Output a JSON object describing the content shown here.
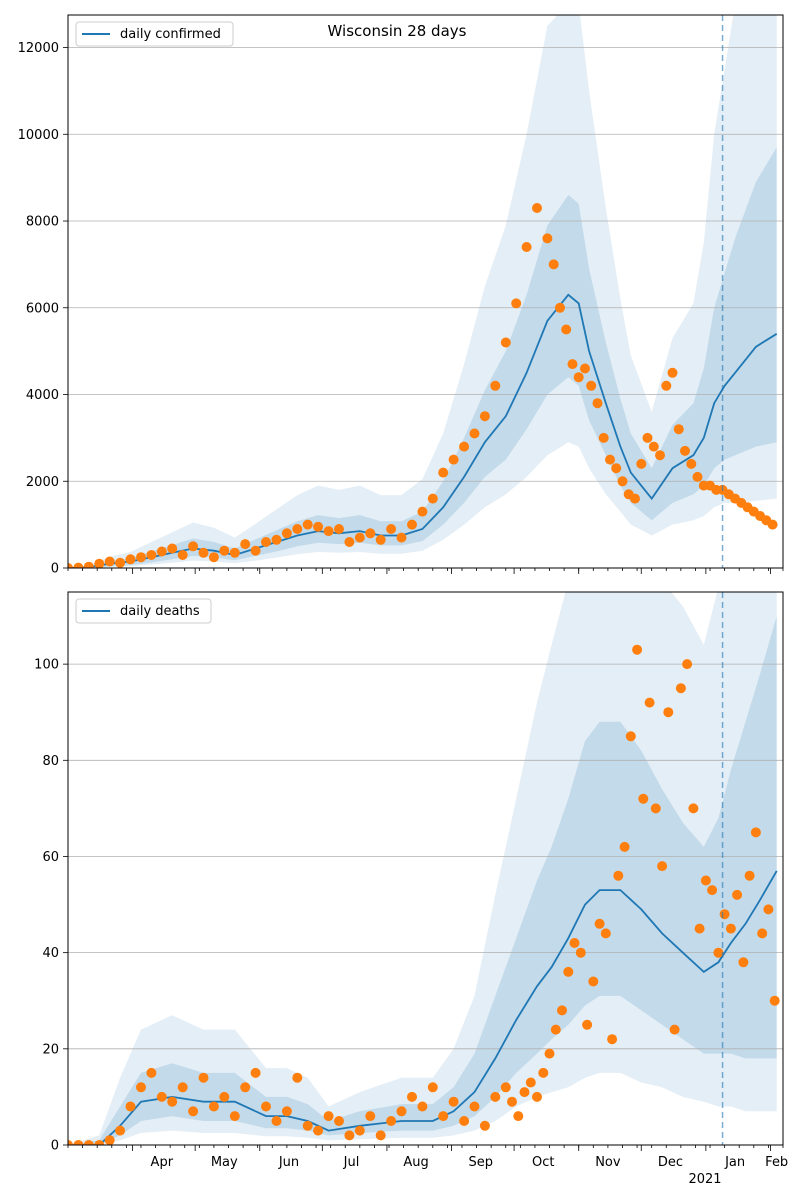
{
  "colors": {
    "band": "#1f77b4",
    "line": "#1f77b4",
    "dots": "#ff7f0e",
    "grid": "#b0b0b0",
    "vline": "#1f77b4"
  },
  "x_axis": {
    "tick_labels": [
      "Apr",
      "May",
      "Jun",
      "Jul",
      "Aug",
      "Sep",
      "Oct",
      "Nov",
      "Dec",
      "Jan",
      "Feb"
    ],
    "year_label": "2021"
  },
  "chart_data": [
    {
      "type": "line",
      "title": "Wisconsin 28 days",
      "legend_position": "top-left",
      "grid": "horizontal",
      "xlim": [
        "2020-03-01",
        "2021-02-07"
      ],
      "ylim": [
        0,
        12750
      ],
      "yticks": [
        "0",
        "2000",
        "4000",
        "6000",
        "8000",
        "10000",
        "12000"
      ],
      "vline_x": "2021-01-09",
      "series": [
        {
          "name": "daily confirmed"
        }
      ],
      "line_day": [
        0,
        10,
        20,
        30,
        40,
        50,
        60,
        70,
        80,
        90,
        100,
        110,
        120,
        130,
        140,
        150,
        160,
        170,
        180,
        190,
        200,
        210,
        220,
        230,
        240,
        245,
        250,
        258,
        265,
        270,
        280,
        290,
        300,
        305,
        310,
        315,
        320,
        330,
        340
      ],
      "line_y": [
        0,
        20,
        100,
        150,
        250,
        350,
        450,
        400,
        300,
        450,
        600,
        750,
        850,
        800,
        850,
        750,
        750,
        900,
        1400,
        2100,
        2900,
        3500,
        4500,
        5700,
        6300,
        6100,
        5000,
        3800,
        2800,
        2200,
        1600,
        2300,
        2600,
        3000,
        3800,
        4200,
        4500,
        5100,
        5400
      ],
      "band_inner_lo": [
        0,
        10,
        40,
        70,
        130,
        200,
        280,
        250,
        180,
        280,
        380,
        500,
        580,
        550,
        580,
        520,
        520,
        620,
        1000,
        1500,
        2100,
        2500,
        3200,
        4000,
        4400,
        4200,
        3400,
        2600,
        1900,
        1500,
        1100,
        1500,
        1700,
        1900,
        2300,
        2500,
        2600,
        2800,
        2900
      ],
      "band_inner_hi": [
        0,
        30,
        160,
        230,
        380,
        530,
        680,
        600,
        450,
        660,
        870,
        1080,
        1220,
        1150,
        1220,
        1080,
        1080,
        1300,
        2000,
        3000,
        4100,
        5000,
        6300,
        7900,
        8600,
        8400,
        6900,
        5200,
        3900,
        3100,
        2300,
        3300,
        3800,
        4600,
        6000,
        6800,
        7600,
        8900,
        9700
      ],
      "band_outer_lo": [
        0,
        5,
        20,
        40,
        80,
        120,
        170,
        150,
        110,
        170,
        240,
        320,
        370,
        350,
        370,
        330,
        330,
        400,
        650,
        1000,
        1400,
        1700,
        2100,
        2600,
        2900,
        2800,
        2300,
        1700,
        1300,
        1000,
        750,
        1000,
        1100,
        1200,
        1400,
        1500,
        1500,
        1550,
        1600
      ],
      "band_outer_hi": [
        0,
        50,
        260,
        370,
        600,
        820,
        1050,
        930,
        700,
        1020,
        1350,
        1680,
        1900,
        1800,
        1900,
        1680,
        1680,
        2050,
        3100,
        4700,
        6500,
        7900,
        10000,
        12500,
        14000,
        13600,
        11000,
        8300,
        6200,
        4900,
        3600,
        5300,
        6100,
        7500,
        10000,
        11500,
        13000,
        15000,
        16500
      ],
      "points": {
        "day": [
          0,
          5,
          10,
          15,
          20,
          25,
          30,
          35,
          40,
          45,
          50,
          55,
          60,
          65,
          70,
          75,
          80,
          85,
          90,
          95,
          100,
          105,
          110,
          115,
          120,
          125,
          130,
          135,
          140,
          145,
          150,
          155,
          160,
          165,
          170,
          175,
          180,
          185,
          190,
          195,
          200,
          205,
          210,
          215,
          220,
          225,
          230,
          233,
          236,
          239,
          242,
          245,
          248,
          251,
          254,
          257,
          260,
          263,
          266,
          269,
          272,
          275,
          278,
          281,
          284,
          287,
          290,
          293,
          296,
          299,
          302,
          305,
          308,
          311,
          314,
          317,
          320,
          323,
          326,
          329,
          332,
          335,
          338
        ],
        "value": [
          0,
          10,
          30,
          100,
          150,
          120,
          200,
          250,
          300,
          380,
          450,
          300,
          500,
          350,
          250,
          400,
          350,
          550,
          400,
          600,
          650,
          800,
          900,
          1000,
          950,
          850,
          900,
          600,
          700,
          800,
          650,
          900,
          700,
          1000,
          1300,
          1600,
          2200,
          2500,
          2800,
          3100,
          3500,
          4200,
          5200,
          6100,
          7400,
          8300,
          7600,
          7000,
          6000,
          5500,
          4700,
          4400,
          4600,
          4200,
          3800,
          3000,
          2500,
          2300,
          2000,
          1700,
          1600,
          2400,
          3000,
          2800,
          2600,
          4200,
          4500,
          3200,
          2700,
          2400,
          2100,
          1900,
          1900,
          1800,
          1800,
          1700,
          1600,
          1500,
          1400,
          1300,
          1200,
          1100,
          1000
        ]
      }
    },
    {
      "type": "line",
      "title": "",
      "legend_position": "top-left",
      "grid": "horizontal",
      "xlim": [
        "2020-03-01",
        "2021-02-07"
      ],
      "ylim": [
        0,
        115
      ],
      "yticks": [
        "0",
        "20",
        "40",
        "60",
        "80",
        "100"
      ],
      "vline_x": "2021-01-09",
      "series": [
        {
          "name": "daily deaths"
        }
      ],
      "line_day": [
        0,
        15,
        25,
        35,
        50,
        65,
        80,
        95,
        105,
        115,
        125,
        140,
        160,
        175,
        185,
        195,
        205,
        215,
        225,
        232,
        240,
        248,
        255,
        265,
        275,
        285,
        295,
        305,
        312,
        318,
        325,
        332,
        340
      ],
      "line_y": [
        0,
        0,
        4,
        9,
        10,
        9,
        9,
        6,
        6,
        5,
        3,
        4,
        5,
        5,
        7,
        11,
        18,
        26,
        33,
        37,
        43,
        50,
        53,
        53,
        49,
        44,
        40,
        36,
        38,
        42,
        46,
        51,
        57
      ],
      "band_inner_lo": [
        0,
        0,
        2,
        5,
        6,
        5,
        5,
        3.5,
        3.5,
        3,
        2,
        2.5,
        3,
        3,
        4,
        6,
        10,
        15,
        19,
        22,
        25,
        29,
        31,
        31,
        28,
        25,
        22,
        19,
        19,
        19,
        18,
        18,
        18
      ],
      "band_inner_hi": [
        0,
        1,
        8,
        15,
        17,
        15,
        15,
        10,
        10,
        8.5,
        5,
        7,
        8.5,
        8.5,
        12,
        19,
        31,
        43,
        55,
        62,
        72,
        84,
        88,
        88,
        82,
        74,
        67,
        62,
        68,
        78,
        88,
        98,
        110
      ],
      "band_outer_lo": [
        0,
        0,
        1,
        2.5,
        3,
        2.5,
        2.5,
        1.8,
        1.8,
        1.5,
        1,
        1.2,
        1.5,
        1.5,
        2,
        3,
        5,
        8,
        10,
        11,
        12,
        14,
        15,
        15,
        13,
        12,
        10,
        9,
        8,
        8,
        7,
        7,
        7
      ],
      "band_outer_hi": [
        0,
        2,
        14,
        24,
        27,
        24,
        24,
        16,
        16,
        14,
        8,
        11,
        14,
        14,
        20,
        31,
        52,
        72,
        92,
        104,
        120,
        140,
        148,
        148,
        138,
        124,
        112,
        104,
        116,
        135,
        155,
        175,
        195
      ],
      "points": {
        "day": [
          0,
          5,
          10,
          15,
          20,
          25,
          30,
          35,
          40,
          45,
          50,
          55,
          60,
          65,
          70,
          75,
          80,
          85,
          90,
          95,
          100,
          105,
          110,
          115,
          120,
          125,
          130,
          135,
          140,
          145,
          150,
          155,
          160,
          165,
          170,
          175,
          180,
          185,
          190,
          195,
          200,
          205,
          210,
          213,
          216,
          219,
          222,
          225,
          228,
          231,
          234,
          237,
          240,
          243,
          246,
          249,
          252,
          255,
          258,
          261,
          264,
          267,
          270,
          273,
          276,
          279,
          282,
          285,
          288,
          291,
          294,
          297,
          300,
          303,
          306,
          309,
          312,
          315,
          318,
          321,
          324,
          327,
          330,
          333,
          336,
          339
        ],
        "value": [
          0,
          0,
          0,
          0,
          1,
          3,
          8,
          12,
          15,
          10,
          9,
          12,
          7,
          14,
          8,
          10,
          6,
          12,
          15,
          8,
          5,
          7,
          14,
          4,
          3,
          6,
          5,
          2,
          3,
          6,
          2,
          5,
          7,
          10,
          8,
          12,
          6,
          9,
          5,
          8,
          4,
          10,
          12,
          9,
          6,
          11,
          13,
          10,
          15,
          19,
          24,
          28,
          36,
          42,
          40,
          25,
          34,
          46,
          44,
          22,
          56,
          62,
          85,
          103,
          72,
          92,
          70,
          58,
          90,
          24,
          95,
          100,
          70,
          45,
          55,
          53,
          40,
          48,
          45,
          52,
          38,
          56,
          65,
          44,
          49,
          30
        ]
      }
    }
  ]
}
